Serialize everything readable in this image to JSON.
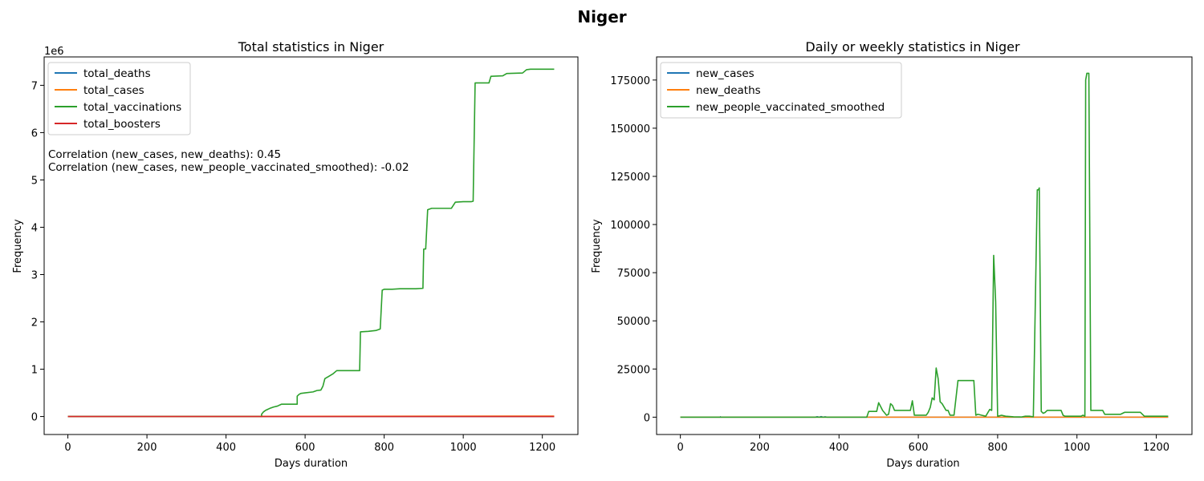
{
  "figure": {
    "title": "Niger"
  },
  "chart_data": [
    {
      "type": "line",
      "title": "Total statistics in Niger",
      "xlabel": "Days duration",
      "ylabel": "Frequency",
      "scale_label": "1e6",
      "xlim": [
        -60,
        1290
      ],
      "ylim": [
        -0.38,
        7.6
      ],
      "xticks": [
        0,
        200,
        400,
        600,
        800,
        1000,
        1200
      ],
      "yticks": [
        0,
        1,
        2,
        3,
        4,
        5,
        6,
        7
      ],
      "legend_placement": "top-left",
      "annotations": [
        "Correlation (new_cases, new_deaths): 0.45",
        "Correlation (new_cases, new_people_vaccinated_smoothed): -0.02"
      ],
      "series": [
        {
          "name": "total_deaths",
          "color": "#1f77b4",
          "x": [
            0,
            1230
          ],
          "y": [
            0,
            0.0003
          ]
        },
        {
          "name": "total_cases",
          "color": "#ff7f0e",
          "x": [
            0,
            1230
          ],
          "y": [
            0,
            0.009
          ]
        },
        {
          "name": "total_vaccinations",
          "color": "#2ca02c",
          "x": [
            0,
            490,
            490,
            495,
            500,
            505,
            510,
            520,
            530,
            540,
            580,
            580,
            585,
            590,
            620,
            630,
            640,
            645,
            650,
            660,
            670,
            680,
            738,
            740,
            760,
            780,
            790,
            795,
            800,
            820,
            840,
            860,
            880,
            898,
            900,
            905,
            910,
            920,
            950,
            970,
            980,
            1000,
            1020,
            1025,
            1030,
            1050,
            1065,
            1070,
            1100,
            1110,
            1150,
            1160,
            1170,
            1230
          ],
          "y": [
            0,
            0,
            0.05,
            0.1,
            0.13,
            0.15,
            0.17,
            0.2,
            0.22,
            0.26,
            0.26,
            0.43,
            0.47,
            0.49,
            0.52,
            0.55,
            0.56,
            0.64,
            0.8,
            0.85,
            0.9,
            0.97,
            0.97,
            1.79,
            1.8,
            1.82,
            1.85,
            2.67,
            2.69,
            2.69,
            2.7,
            2.7,
            2.7,
            2.71,
            3.54,
            3.54,
            4.37,
            4.4,
            4.4,
            4.4,
            4.53,
            4.54,
            4.54,
            4.55,
            7.05,
            7.05,
            7.05,
            7.19,
            7.2,
            7.25,
            7.26,
            7.33,
            7.34,
            7.34
          ]
        },
        {
          "name": "total_boosters",
          "color": "#d62728",
          "x": [
            0,
            1230
          ],
          "y": [
            0,
            0.0
          ]
        }
      ]
    },
    {
      "type": "line",
      "title": "Daily or weekly statistics in Niger",
      "xlabel": "Days duration",
      "ylabel": "Frequency",
      "xlim": [
        -60,
        1290
      ],
      "ylim": [
        -9000,
        187000
      ],
      "xticks": [
        0,
        200,
        400,
        600,
        800,
        1000,
        1200
      ],
      "yticks": [
        0,
        25000,
        50000,
        75000,
        100000,
        125000,
        150000,
        175000
      ],
      "legend_placement": "top-left",
      "series": [
        {
          "name": "new_cases",
          "color": "#1f77b4",
          "x": [
            0,
            100,
            101,
            102,
            340,
            345,
            350,
            355,
            360,
            365,
            370,
            1230
          ],
          "y": [
            0,
            0,
            200,
            0,
            0,
            250,
            0,
            300,
            0,
            200,
            0,
            0
          ]
        },
        {
          "name": "new_deaths",
          "color": "#ff7f0e",
          "x": [
            0,
            1230
          ],
          "y": [
            0,
            0
          ]
        },
        {
          "name": "new_people_vaccinated_smoothed",
          "color": "#2ca02c",
          "x": [
            0,
            470,
            475,
            495,
            500,
            510,
            520,
            525,
            530,
            535,
            540,
            545,
            580,
            585,
            590,
            620,
            625,
            630,
            635,
            640,
            645,
            650,
            655,
            660,
            670,
            675,
            680,
            690,
            700,
            710,
            740,
            745,
            750,
            760,
            770,
            780,
            785,
            790,
            795,
            800,
            810,
            820,
            840,
            860,
            870,
            880,
            890,
            900,
            903,
            905,
            910,
            915,
            920,
            925,
            930,
            935,
            950,
            960,
            965,
            970,
            980,
            1000,
            1010,
            1015,
            1020,
            1022,
            1025,
            1028,
            1030,
            1035,
            1060,
            1065,
            1070,
            1080,
            1110,
            1120,
            1160,
            1170,
            1230
          ],
          "y": [
            0,
            0,
            3000,
            3000,
            7500,
            3500,
            1000,
            1500,
            7000,
            6000,
            3500,
            3500,
            3500,
            8500,
            1000,
            1000,
            2500,
            5000,
            10000,
            9000,
            25500,
            20000,
            8000,
            7000,
            3500,
            3500,
            1000,
            1000,
            19000,
            19000,
            19000,
            1000,
            1500,
            1000,
            500,
            4000,
            3500,
            84000,
            60000,
            500,
            1000,
            500,
            200,
            100,
            500,
            500,
            200,
            118000,
            118000,
            119000,
            3000,
            2000,
            2500,
            3500,
            3500,
            3500,
            3500,
            3500,
            1000,
            500,
            500,
            500,
            500,
            1000,
            500,
            175000,
            178500,
            178500,
            178500,
            3500,
            3500,
            3500,
            1500,
            1500,
            1500,
            2500,
            2500,
            500,
            500
          ]
        }
      ]
    }
  ]
}
